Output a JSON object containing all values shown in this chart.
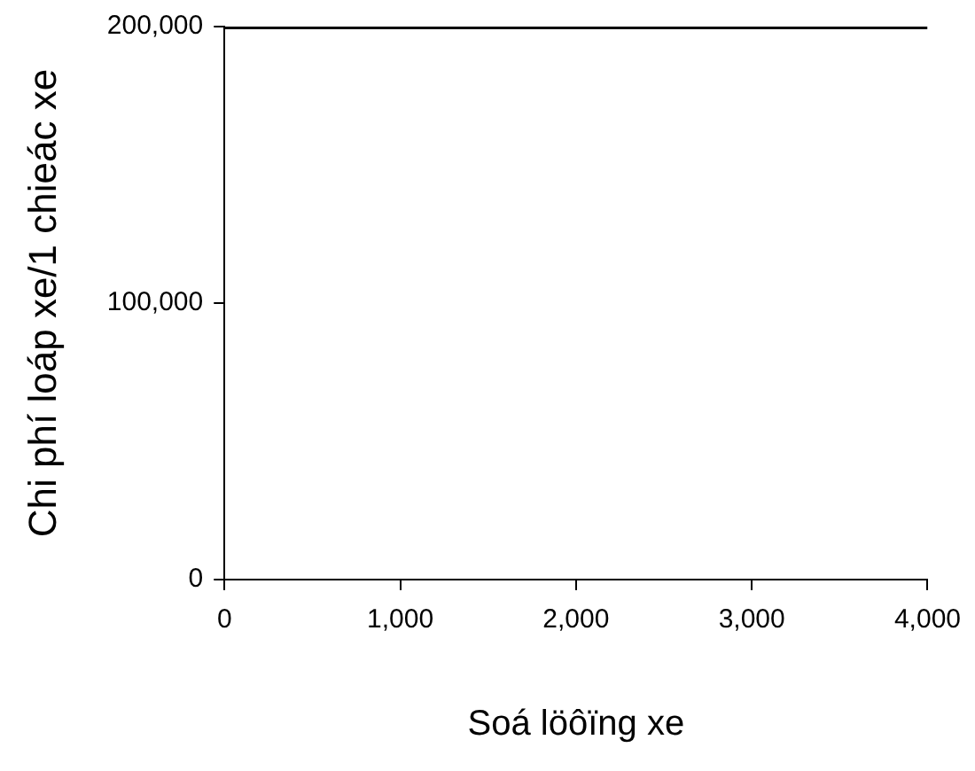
{
  "chart_data": {
    "type": "line",
    "xlabel": "Soá löôïng xe",
    "ylabel": "Chi phí loáp xe/1 chieác xe",
    "x": [
      0,
      4000
    ],
    "series": [
      {
        "color": "#000000",
        "values": [
          200000,
          200000
        ]
      }
    ],
    "xlim": [
      0,
      4000
    ],
    "xticks": [
      {
        "value": 0,
        "label": "0"
      },
      {
        "value": 1000,
        "label": "1,000"
      },
      {
        "value": 2000,
        "label": "2,000"
      },
      {
        "value": 3000,
        "label": "3,000"
      },
      {
        "value": 4000,
        "label": "4,000"
      }
    ],
    "ylim": [
      0,
      200000
    ],
    "yticks": [
      {
        "value": 0,
        "label": "0"
      },
      {
        "value": 100000,
        "label": "100,000"
      },
      {
        "value": 200000,
        "label": "200,000"
      }
    ],
    "grid": false,
    "legend": false,
    "marker": "none",
    "line_style": "solid"
  }
}
